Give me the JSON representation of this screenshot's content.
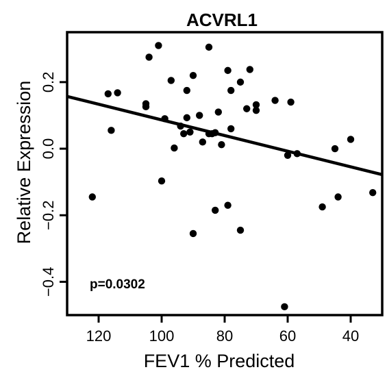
{
  "chart_data": {
    "type": "scatter",
    "title": "ACVRL1",
    "xlabel": "FEV1 % Predicted",
    "ylabel": "Relative Expression",
    "x_reversed": true,
    "xlim": [
      130,
      30
    ],
    "ylim": [
      -0.5,
      0.35
    ],
    "xticks": [
      120,
      100,
      80,
      60,
      40
    ],
    "xtick_labels": [
      "120",
      "100",
      "80",
      "60",
      "40"
    ],
    "yticks": [
      -0.4,
      -0.2,
      0.0,
      0.2
    ],
    "ytick_labels": [
      "−0.4",
      "−0.2",
      "0.0",
      "0.2"
    ],
    "grid": false,
    "annotation": "p=0.0302",
    "regression_line": {
      "x": [
        130,
        30
      ],
      "y": [
        0.157,
        -0.078
      ]
    },
    "points": [
      {
        "x": 122,
        "y": -0.145
      },
      {
        "x": 117,
        "y": 0.165
      },
      {
        "x": 116,
        "y": 0.055
      },
      {
        "x": 114,
        "y": 0.168
      },
      {
        "x": 105,
        "y": 0.126
      },
      {
        "x": 105,
        "y": 0.135
      },
      {
        "x": 104,
        "y": 0.275
      },
      {
        "x": 101,
        "y": 0.31
      },
      {
        "x": 100,
        "y": -0.097
      },
      {
        "x": 99,
        "y": 0.09
      },
      {
        "x": 97,
        "y": 0.205
      },
      {
        "x": 96,
        "y": 0.002
      },
      {
        "x": 94,
        "y": 0.068
      },
      {
        "x": 93,
        "y": 0.045
      },
      {
        "x": 92,
        "y": 0.175
      },
      {
        "x": 92,
        "y": 0.093
      },
      {
        "x": 91,
        "y": 0.05
      },
      {
        "x": 90,
        "y": 0.22
      },
      {
        "x": 90,
        "y": -0.255
      },
      {
        "x": 88,
        "y": 0.1
      },
      {
        "x": 87,
        "y": 0.02
      },
      {
        "x": 85,
        "y": 0.045
      },
      {
        "x": 85,
        "y": 0.305
      },
      {
        "x": 84,
        "y": 0.045
      },
      {
        "x": 83,
        "y": -0.185
      },
      {
        "x": 83,
        "y": 0.048
      },
      {
        "x": 82,
        "y": 0.11
      },
      {
        "x": 81,
        "y": 0.012
      },
      {
        "x": 79,
        "y": 0.235
      },
      {
        "x": 79,
        "y": -0.17
      },
      {
        "x": 78,
        "y": 0.06
      },
      {
        "x": 78,
        "y": 0.175
      },
      {
        "x": 75,
        "y": 0.2
      },
      {
        "x": 75,
        "y": -0.245
      },
      {
        "x": 73,
        "y": 0.12
      },
      {
        "x": 72,
        "y": 0.238
      },
      {
        "x": 70,
        "y": 0.115
      },
      {
        "x": 70,
        "y": 0.132
      },
      {
        "x": 64,
        "y": 0.145
      },
      {
        "x": 61,
        "y": -0.475
      },
      {
        "x": 60,
        "y": -0.02
      },
      {
        "x": 59,
        "y": 0.14
      },
      {
        "x": 57,
        "y": -0.015
      },
      {
        "x": 49,
        "y": -0.175
      },
      {
        "x": 45,
        "y": 0.0
      },
      {
        "x": 44,
        "y": -0.145
      },
      {
        "x": 40,
        "y": 0.028
      },
      {
        "x": 33,
        "y": -0.132
      }
    ]
  }
}
